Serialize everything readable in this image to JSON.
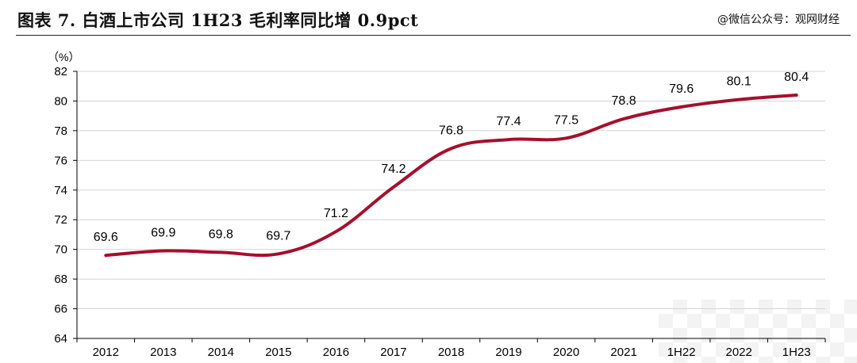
{
  "header": {
    "title": "图表 7. 白酒上市公司 1H23 毛利率同比增 0.9pct",
    "source": "@微信公众号：观网财经"
  },
  "chart_data": {
    "type": "line",
    "title": "",
    "unit_label": "（%）",
    "categories": [
      "2012",
      "2013",
      "2014",
      "2015",
      "2016",
      "2017",
      "2018",
      "2019",
      "2020",
      "2021",
      "1H22",
      "2022",
      "1H23"
    ],
    "series": [
      {
        "values": [
          69.6,
          69.9,
          69.8,
          69.7,
          71.2,
          74.2,
          76.8,
          77.4,
          77.5,
          78.8,
          79.6,
          80.1,
          80.4
        ]
      }
    ],
    "y_ticks": [
      "64",
      "66",
      "68",
      "70",
      "72",
      "74",
      "76",
      "78",
      "80",
      "82"
    ],
    "ylim": [
      64,
      82
    ],
    "grid": true,
    "colors": {
      "line": "#A50F2D",
      "grid": "#D4D4D4",
      "axis": "#000000",
      "light_tick_labels": "#7F7F7F"
    },
    "light_categories": [
      "1H22",
      "1H23"
    ]
  }
}
